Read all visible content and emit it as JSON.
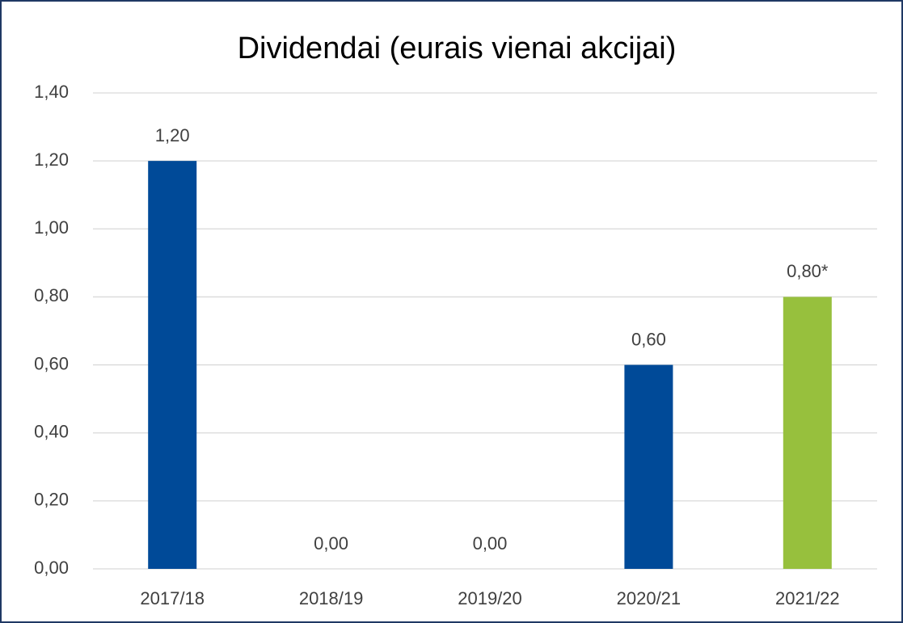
{
  "chart_data": {
    "type": "bar",
    "title": "Dividendai (eurais vienai akcijai)",
    "categories": [
      "2017/18",
      "2018/19",
      "2019/20",
      "2020/21",
      "2021/22"
    ],
    "values": [
      1.2,
      0,
      0,
      0.6,
      0.8
    ],
    "value_labels": [
      "1,20",
      "0,00",
      "0,00",
      "0,60",
      "0,80*"
    ],
    "colors": [
      "#004a98",
      "#004a98",
      "#004a98",
      "#004a98",
      "#97c03d"
    ],
    "ylim": [
      0,
      1.4
    ],
    "yticks": [
      {
        "value": 0,
        "label": "0,00"
      },
      {
        "value": 0.2,
        "label": "0,20"
      },
      {
        "value": 0.4,
        "label": "0,40"
      },
      {
        "value": 0.6,
        "label": "0,60"
      },
      {
        "value": 0.8,
        "label": "0,80"
      },
      {
        "value": 1.0,
        "label": "1,00"
      },
      {
        "value": 1.2,
        "label": "1,20"
      },
      {
        "value": 1.4,
        "label": "1,40"
      }
    ],
    "grid": true
  }
}
